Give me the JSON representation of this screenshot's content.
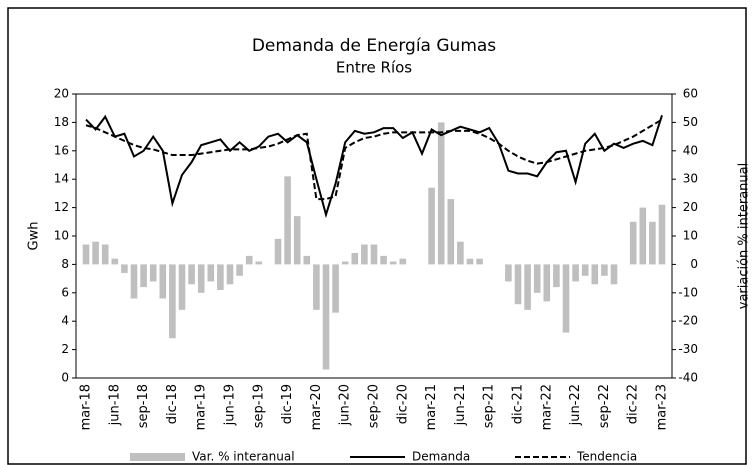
{
  "chart_data": {
    "type": "bar-line",
    "title": "Demanda de Energía Gumas",
    "subtitle": "Entre Ríos",
    "ylabel": "Gwh",
    "y2label": "variación % interanual",
    "categories": [
      "mar-18",
      null,
      null,
      "jun-18",
      null,
      null,
      "sep-18",
      null,
      null,
      "dic-18",
      null,
      null,
      "mar-19",
      null,
      null,
      "jun-19",
      null,
      null,
      "sep-19",
      null,
      null,
      "dic-19",
      null,
      null,
      "mar-20",
      null,
      null,
      "jun-20",
      null,
      null,
      "sep-20",
      null,
      null,
      "dic-20",
      null,
      null,
      "mar-21",
      null,
      null,
      "jun-21",
      null,
      null,
      "sep-21",
      null,
      null,
      "dic-21",
      null,
      null,
      "mar-22",
      null,
      null,
      "jun-22",
      null,
      null,
      "sep-22",
      null,
      null,
      "dic-22",
      null,
      null,
      "mar-23"
    ],
    "series": [
      {
        "name": "Var. % interanual",
        "type": "bar",
        "axis": "y2",
        "color": "#bfbfbf",
        "values": [
          7,
          8,
          7,
          2,
          -3,
          -12,
          -8,
          -6,
          -12,
          -26,
          -16,
          -7,
          -10,
          -6,
          -9,
          -7,
          -4,
          3,
          1,
          0,
          9,
          31,
          17,
          3,
          -16,
          -37,
          -17,
          1,
          4,
          7,
          7,
          3,
          1,
          2,
          0,
          0,
          27,
          50,
          23,
          8,
          2,
          2,
          0,
          0,
          -6,
          -14,
          -16,
          -10,
          -13,
          -8,
          -24,
          -6,
          -4,
          -7,
          -4,
          -7,
          0,
          15,
          20,
          15,
          21
        ]
      },
      {
        "name": "Demanda",
        "type": "line",
        "color": "#000000",
        "dashed": false,
        "values": [
          18.2,
          17.5,
          18.4,
          17.0,
          17.2,
          15.6,
          16.0,
          17.0,
          16.0,
          12.3,
          14.3,
          15.2,
          16.4,
          16.6,
          16.8,
          16.0,
          16.6,
          16.0,
          16.3,
          17.0,
          17.2,
          16.6,
          17.1,
          16.6,
          14.0,
          11.5,
          13.7,
          16.6,
          17.4,
          17.2,
          17.3,
          17.6,
          17.6,
          16.9,
          17.3,
          15.8,
          17.5,
          17.1,
          17.4,
          17.7,
          17.5,
          17.3,
          17.6,
          16.5,
          14.6,
          14.4,
          14.4,
          14.2,
          15.2,
          15.9,
          16.0,
          13.8,
          16.5,
          17.2,
          16.0,
          16.5,
          16.2,
          16.5,
          16.7,
          16.4,
          18.5
        ]
      },
      {
        "name": "Tendencia",
        "type": "line",
        "color": "#000000",
        "dashed": true,
        "values": [
          17.8,
          17.6,
          17.3,
          17.0,
          16.7,
          16.4,
          16.2,
          16.1,
          15.9,
          15.7,
          15.7,
          15.7,
          15.8,
          15.9,
          16.0,
          16.1,
          16.1,
          16.1,
          16.2,
          16.3,
          16.5,
          16.8,
          17.1,
          17.2,
          12.6,
          12.6,
          12.8,
          16.2,
          16.6,
          16.9,
          17.0,
          17.2,
          17.3,
          17.3,
          17.3,
          17.3,
          17.3,
          17.3,
          17.4,
          17.4,
          17.4,
          17.2,
          16.9,
          16.5,
          16.0,
          15.6,
          15.3,
          15.1,
          15.2,
          15.4,
          15.6,
          15.8,
          16.0,
          16.1,
          16.2,
          16.4,
          16.7,
          17.0,
          17.4,
          17.8,
          18.2
        ]
      }
    ],
    "ylim": [
      0,
      20
    ],
    "yticks": [
      0,
      2,
      4,
      6,
      8,
      10,
      12,
      14,
      16,
      18,
      20
    ],
    "y2lim": [
      -40,
      60
    ],
    "y2ticks": [
      -40,
      -30,
      -20,
      -10,
      0,
      10,
      20,
      30,
      40,
      50,
      60
    ],
    "grid": false,
    "legend": "bottom"
  }
}
